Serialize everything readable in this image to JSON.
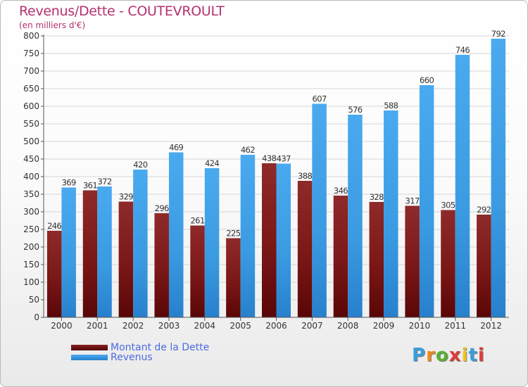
{
  "title": "Revenus/Dette - COUTEVROULT",
  "subtitle": "(en milliers d'€)",
  "logo": {
    "text": "Proxiti",
    "colors": [
      "#3a9edb",
      "#f08a1c",
      "#5ab031",
      "#e23b3b",
      "#f0c21c",
      "#3a9edb",
      "#e23b3b"
    ]
  },
  "colors": {
    "dette": "#8b1e1e",
    "revenus": "#3d9ee4",
    "title": "#b5306f",
    "legend_text": "#4a6be0"
  },
  "legend": [
    {
      "label": "Montant de la Dette",
      "color": "#6a0d0d"
    },
    {
      "label": "Revenus",
      "color": "#3d9ee4"
    }
  ],
  "chart_data": {
    "type": "bar",
    "title": "Revenus/Dette - COUTEVROULT",
    "subtitle": "(en milliers d'€)",
    "categories": [
      "2000",
      "2001",
      "2002",
      "2003",
      "2004",
      "2005",
      "2006",
      "2007",
      "2008",
      "2009",
      "2010",
      "2011",
      "2012"
    ],
    "series": [
      {
        "name": "Montant de la Dette",
        "values": [
          246,
          361,
          329,
          296,
          261,
          225,
          438,
          388,
          346,
          328,
          317,
          305,
          292
        ]
      },
      {
        "name": "Revenus",
        "values": [
          369,
          372,
          420,
          469,
          424,
          462,
          437,
          607,
          576,
          588,
          660,
          746,
          792
        ]
      }
    ],
    "ylim": [
      0,
      800
    ],
    "yticks": [
      0,
      50,
      100,
      150,
      200,
      250,
      300,
      350,
      400,
      450,
      500,
      550,
      600,
      650,
      700,
      750,
      800
    ],
    "grid": true,
    "legend_position": "bottom-left"
  }
}
